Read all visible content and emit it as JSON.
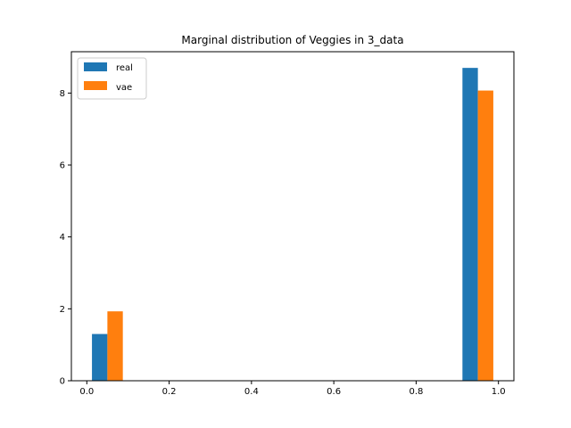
{
  "chart_data": {
    "type": "bar",
    "title": "Marginal distribution of Veggies in 3_data",
    "xlabel": "",
    "ylabel": "",
    "xlim": [
      -0.0375,
      1.0375
    ],
    "ylim": [
      0,
      9.15
    ],
    "xticks": [
      0.0,
      0.2,
      0.4,
      0.6,
      0.8,
      1.0
    ],
    "xtick_labels": [
      "0.0",
      "0.2",
      "0.4",
      "0.6",
      "0.8",
      "1.0"
    ],
    "yticks": [
      0,
      2,
      4,
      6,
      8
    ],
    "ytick_labels": [
      "0",
      "2",
      "4",
      "6",
      "8"
    ],
    "grid": false,
    "legend_position": "top-left",
    "series": [
      {
        "name": "real",
        "color": "#1f77b4",
        "bins": [
          {
            "x0": 0.0125,
            "x1": 0.05,
            "value": 1.3
          },
          {
            "x0": 0.9125,
            "x1": 0.95,
            "value": 8.7
          }
        ]
      },
      {
        "name": "vae",
        "color": "#ff7f0e",
        "bins": [
          {
            "x0": 0.05,
            "x1": 0.0875,
            "value": 1.93
          },
          {
            "x0": 0.95,
            "x1": 0.9875,
            "value": 8.07
          }
        ]
      }
    ]
  }
}
